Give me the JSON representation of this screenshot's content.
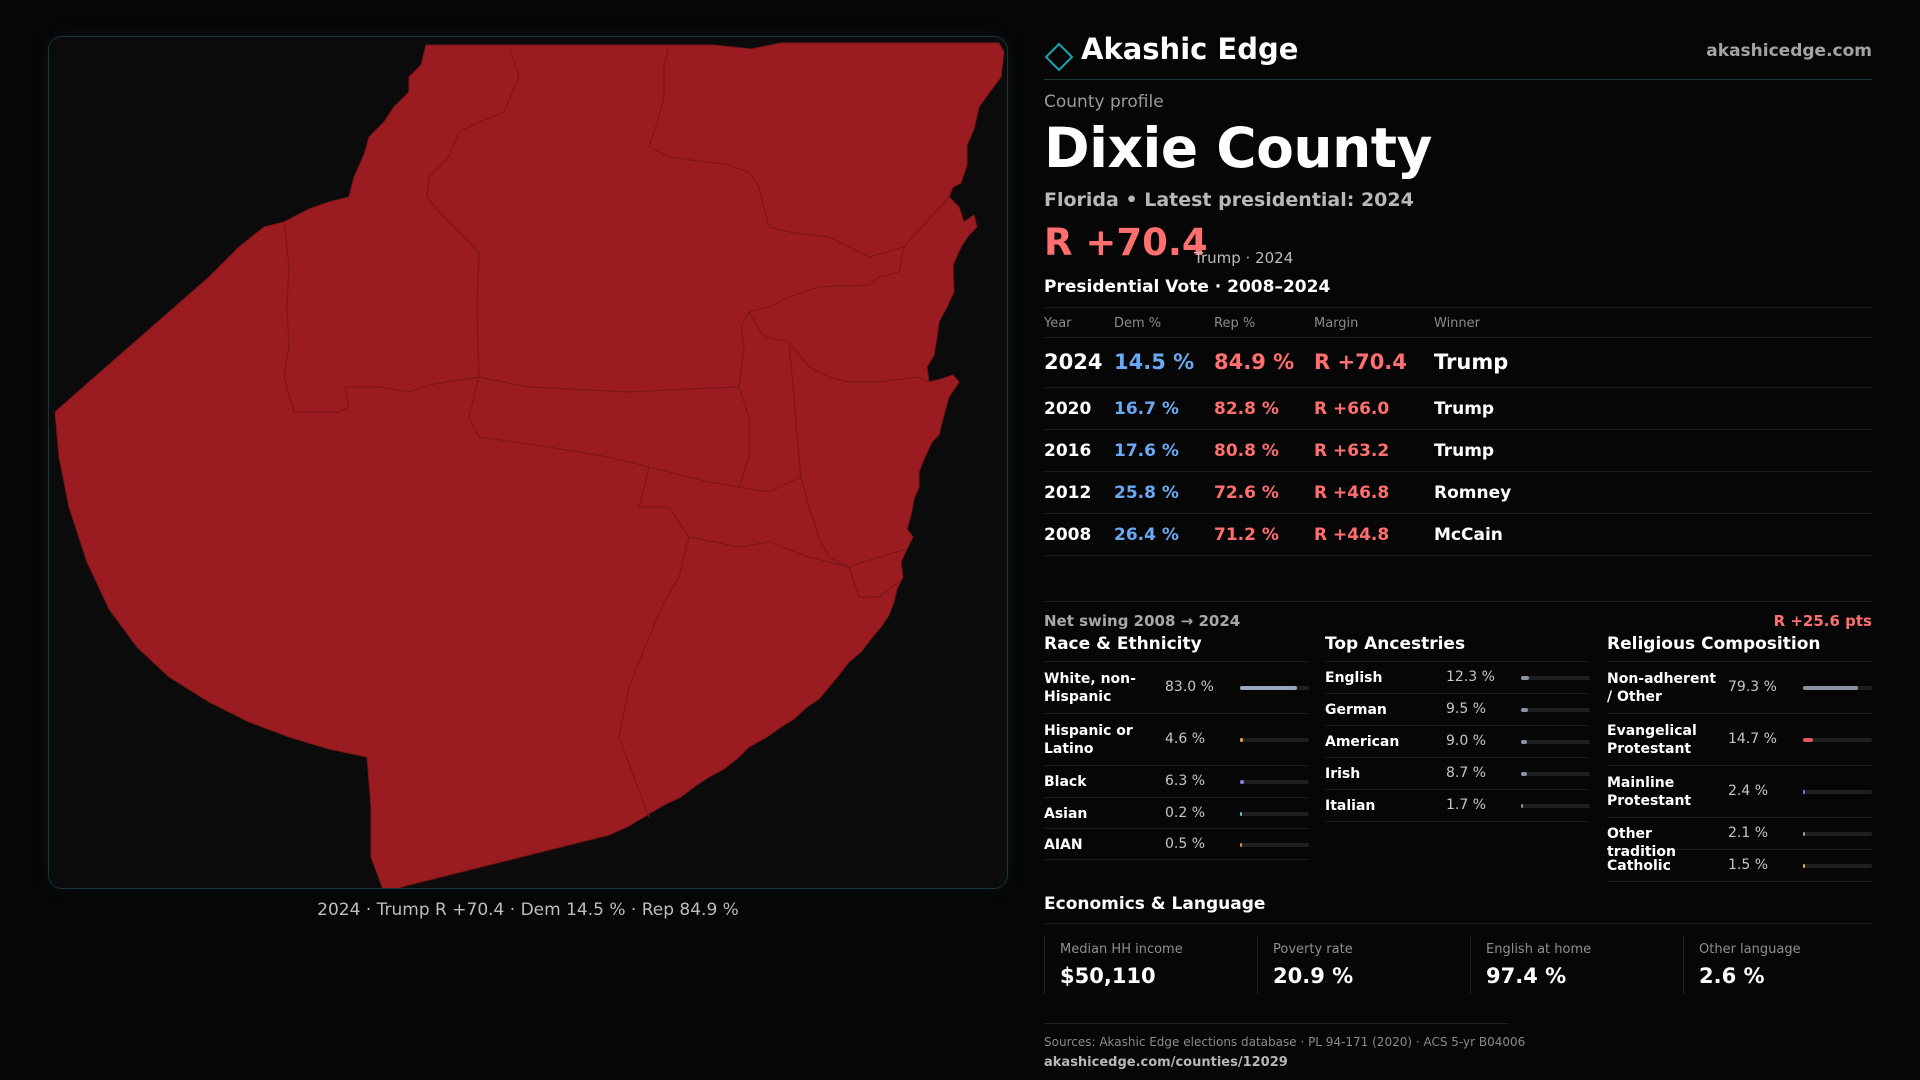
{
  "brand": {
    "name": "Akashic Edge",
    "url": "akashicedge.com",
    "accent": "#1aa3b0"
  },
  "profile": {
    "label": "County profile",
    "county": "Dixie County",
    "subtitle": "Florida • Latest presidential: 2024",
    "margin": "R +70.4",
    "margin_note": "Trump · 2024"
  },
  "map": {
    "caption": "2024 · Trump R +70.4 · Dem 14.5 % · Rep 84.9 %",
    "fill_color": "#9b1c20",
    "border_color": "#7d1518"
  },
  "vote": {
    "title": "Presidential Vote · 2008–2024",
    "headers": {
      "year": "Year",
      "dem": "Dem %",
      "rep": "Rep %",
      "margin": "Margin",
      "winner": "Winner"
    },
    "rows": [
      {
        "year": "2024",
        "dem": "14.5 %",
        "rep": "84.9 %",
        "margin": "R +70.4",
        "winner": "Trump"
      },
      {
        "year": "2020",
        "dem": "16.7 %",
        "rep": "82.8 %",
        "margin": "R +66.0",
        "winner": "Trump"
      },
      {
        "year": "2016",
        "dem": "17.6 %",
        "rep": "80.8 %",
        "margin": "R +63.2",
        "winner": "Trump"
      },
      {
        "year": "2012",
        "dem": "25.8 %",
        "rep": "72.6 %",
        "margin": "R +46.8",
        "winner": "Romney"
      },
      {
        "year": "2008",
        "dem": "26.4 %",
        "rep": "71.2 %",
        "margin": "R +44.8",
        "winner": "McCain"
      }
    ],
    "swing_label": "Net swing 2008 → 2024",
    "swing_value": "R +25.6 pts"
  },
  "race": {
    "title": "Race & Ethnicity",
    "items": [
      {
        "label": "White, non-Hispanic",
        "value": "83.0 %",
        "share": 0.83,
        "color": "#9aa7bd"
      },
      {
        "label": "Hispanic or Latino",
        "value": "4.6 %",
        "share": 0.046,
        "color": "#e8a33d"
      },
      {
        "label": "Black",
        "value": "6.3 %",
        "share": 0.063,
        "color": "#8c7ff0"
      },
      {
        "label": "Asian",
        "value": "0.2 %",
        "share": 0.002,
        "color": "#5cc0c6"
      },
      {
        "label": "AIAN",
        "value": "0.5 %",
        "share": 0.005,
        "color": "#d9874a"
      }
    ]
  },
  "ancestry": {
    "title": "Top Ancestries",
    "items": [
      {
        "label": "English",
        "value": "12.3 %",
        "share": 0.123,
        "color": "#8a93a6"
      },
      {
        "label": "German",
        "value": "9.5 %",
        "share": 0.095,
        "color": "#8a93a6"
      },
      {
        "label": "American",
        "value": "9.0 %",
        "share": 0.09,
        "color": "#8a93a6"
      },
      {
        "label": "Irish",
        "value": "8.7 %",
        "share": 0.087,
        "color": "#8a93a6"
      },
      {
        "label": "Italian",
        "value": "1.7 %",
        "share": 0.017,
        "color": "#8a93a6"
      }
    ]
  },
  "religion": {
    "title": "Religious Composition",
    "items": [
      {
        "label": "Non-adherent / Other",
        "value": "79.3 %",
        "share": 0.793,
        "color": "#8a93a6"
      },
      {
        "label": "Evangelical Protestant",
        "value": "14.7 %",
        "share": 0.147,
        "color": "#e05555"
      },
      {
        "label": "Mainline Protestant",
        "value": "2.4 %",
        "share": 0.024,
        "color": "#5b8fe0"
      },
      {
        "label": "Other tradition",
        "value": "2.1 %",
        "share": 0.021,
        "color": "#9a9a9a"
      },
      {
        "label": "Catholic",
        "value": "1.5 %",
        "share": 0.015,
        "color": "#d6b23c"
      }
    ]
  },
  "economics": {
    "title": "Economics & Language",
    "cards": [
      {
        "label": "Median HH income",
        "value": "$50,110"
      },
      {
        "label": "Poverty rate",
        "value": "20.9 %"
      },
      {
        "label": "English at home",
        "value": "97.4 %"
      },
      {
        "label": "Other language",
        "value": "2.6 %"
      }
    ]
  },
  "footer": {
    "sources": "Sources: Akashic Edge elections database · PL 94-171 (2020) · ACS 5-yr B04006",
    "url": "akashicedge.com/counties/12029"
  }
}
